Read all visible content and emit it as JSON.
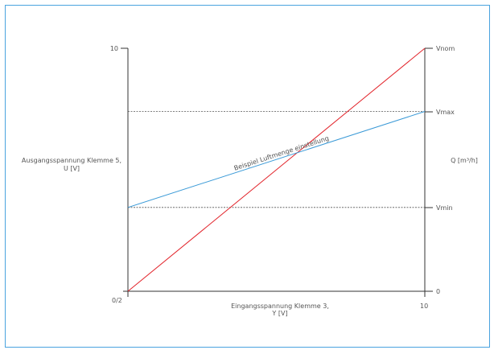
{
  "chart_data": {
    "type": "line",
    "xlabel": [
      "Eingangsspannung Klemme 3,",
      "Y [V]"
    ],
    "ylabel_left": [
      "Ausgangsspannung Klemme 5,",
      "U [V]"
    ],
    "ylabel_right": "Q [m³/h]",
    "x_ticks": [
      "0/2",
      "10"
    ],
    "y_ticks_left": [
      "10"
    ],
    "y_ticks_right": [
      "Vnom",
      "Vmax",
      "Vmin",
      "0"
    ],
    "xlim": [
      0,
      10
    ],
    "ylim": [
      0,
      10
    ],
    "reference_lines": [
      {
        "name": "Vmax",
        "y": 7.4
      },
      {
        "name": "Vmin",
        "y": 3.45
      }
    ],
    "series": [
      {
        "x": [
          0,
          10
        ],
        "y": [
          0,
          10
        ],
        "color": "#e2232a"
      },
      {
        "name": "Beispiel Luftmenge einstellung",
        "x": [
          0,
          10
        ],
        "y": [
          3.45,
          7.4
        ],
        "color": "#3b9ad7"
      }
    ]
  },
  "colors": {
    "frame": "#4aa3df",
    "axis": "#333333",
    "dashed": "#555555"
  }
}
